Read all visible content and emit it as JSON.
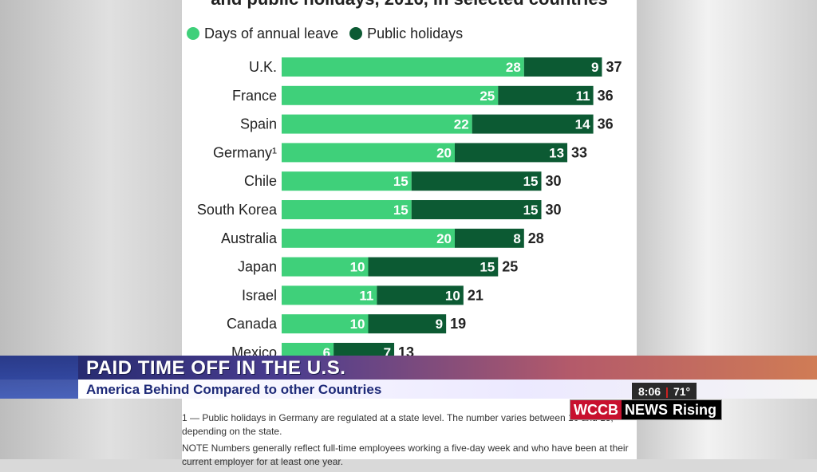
{
  "chart_data": {
    "type": "bar",
    "title": "and public holidays, 2016, in selected countries",
    "legend_position": "top-left",
    "categories": [
      "U.K.",
      "France",
      "Spain",
      "Germany¹",
      "Chile",
      "South Korea",
      "Australia",
      "Japan",
      "Israel",
      "Canada",
      "Mexico"
    ],
    "series": [
      {
        "name": "Days of annual leave",
        "color": "#3fd07a",
        "values": [
          28,
          25,
          22,
          20,
          15,
          15,
          20,
          10,
          11,
          10,
          6
        ]
      },
      {
        "name": "Public holidays",
        "color": "#0c5a33",
        "values": [
          9,
          11,
          14,
          13,
          15,
          15,
          8,
          15,
          10,
          9,
          7
        ]
      }
    ],
    "totals": [
      37,
      36,
      36,
      33,
      30,
      30,
      28,
      25,
      21,
      19,
      13
    ],
    "stacked": true
  },
  "footnotes": {
    "note1": "1 — Public holidays in Germany are regulated at a state level. The number varies between 10 and 13, depending on the state.",
    "note2": "NOTE Numbers generally reflect full-time employees working a five-day week and who have been at their current employer for at least one year."
  },
  "lower_third": {
    "headline": "PAID TIME OFF IN THE U.S.",
    "subhead": "America Behind Compared to other Countries",
    "time": "8:06",
    "separator": "|",
    "temperature": "71°"
  },
  "brand": {
    "call_letters": "WCCB",
    "news": "NEWS",
    "rising": "Rising",
    "colors": {
      "red": "#c8102e",
      "black": "#000000"
    }
  }
}
